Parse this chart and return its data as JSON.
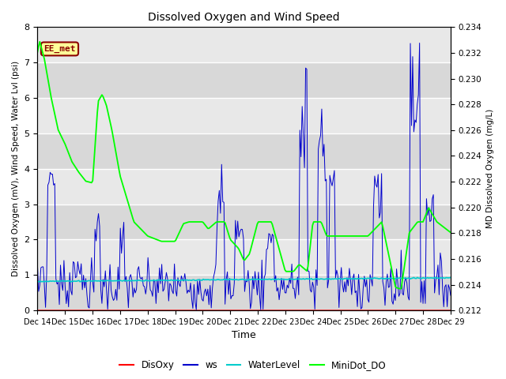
{
  "title": "Dissolved Oxygen and Wind Speed",
  "ylabel_left": "Dissolved Oxygen (mV), Wind Speed, Water Lvl (psi)",
  "ylabel_right": "MD Dissolved Oxygen (mg/L)",
  "xlabel": "Time",
  "ylim_left": [
    0.0,
    8.0
  ],
  "ylim_right": [
    0.212,
    0.234
  ],
  "yticks_left": [
    0.0,
    1.0,
    2.0,
    3.0,
    4.0,
    5.0,
    6.0,
    7.0,
    8.0
  ],
  "yticks_right": [
    0.212,
    0.214,
    0.216,
    0.218,
    0.22,
    0.222,
    0.224,
    0.226,
    0.228,
    0.23,
    0.232,
    0.234
  ],
  "xtick_labels": [
    "Dec 14",
    "Dec 15",
    "Dec 16",
    "Dec 17",
    "Dec 18",
    "Dec 19",
    "Dec 20",
    "Dec 21",
    "Dec 22",
    "Dec 23",
    "Dec 24",
    "Dec 25",
    "Dec 26",
    "Dec 27",
    "Dec 28",
    "Dec 29"
  ],
  "annotation_text": "EE_met",
  "annotation_fg": "#8B0000",
  "annotation_bg": "#FFFF99",
  "colors": {
    "DisOxy": "#FF0000",
    "ws": "#0000CC",
    "WaterLevel": "#00CCCC",
    "MiniDot_DO": "#00FF00"
  },
  "background_color": "#E8E8E8",
  "grid_color": "#FFFFFF",
  "n_days": 15,
  "n_points": 360
}
